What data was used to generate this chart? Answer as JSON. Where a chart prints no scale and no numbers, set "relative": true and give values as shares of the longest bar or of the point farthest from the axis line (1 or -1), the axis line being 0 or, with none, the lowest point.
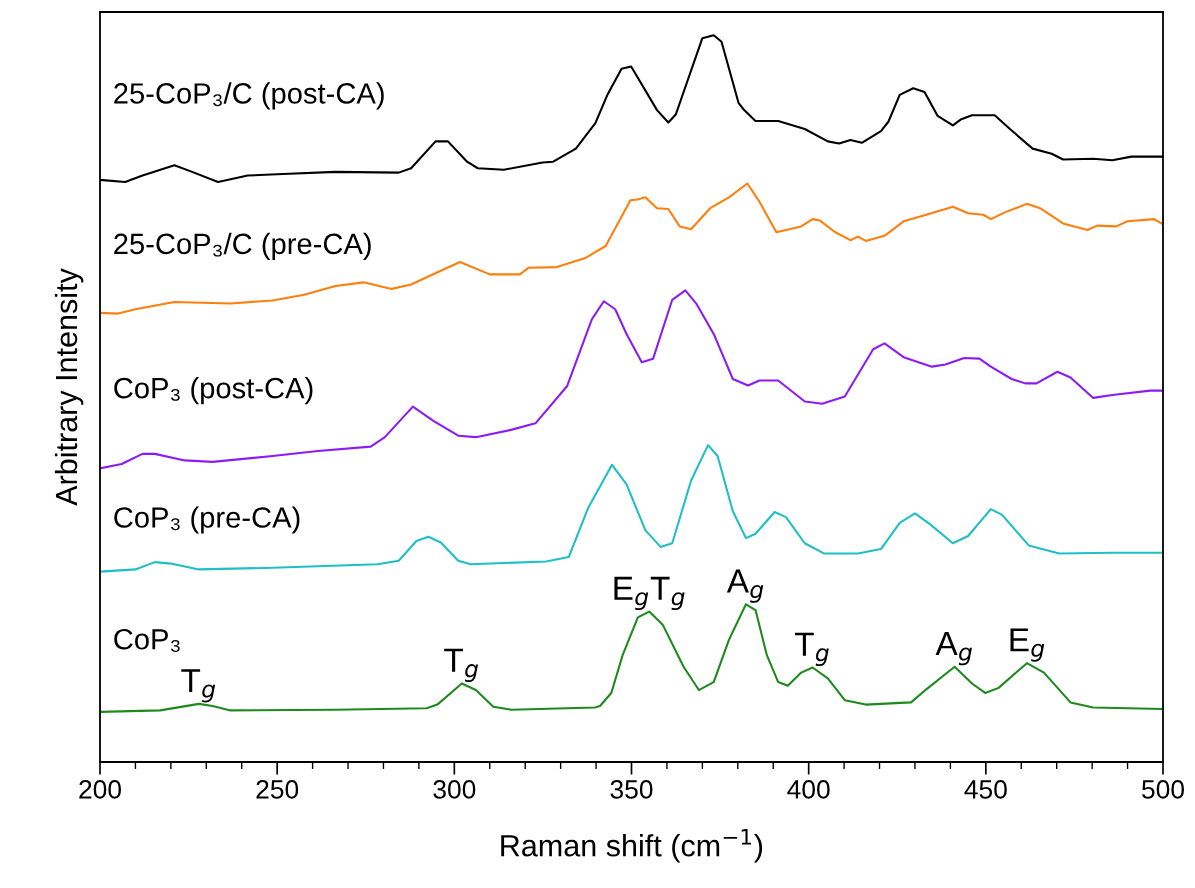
{
  "chart_data": {
    "type": "line",
    "relative": true,
    "xlabel": "Raman shift (cm$^{−1}$)",
    "ylabel": "Arbitrary Intensity",
    "xlim": [
      200,
      500
    ],
    "xticks": [
      200,
      {
        "value": 210,
        "label": null
      },
      {
        "value": 220,
        "label": null
      },
      {
        "value": 230,
        "label": null
      },
      {
        "value": 240,
        "label": null
      },
      250,
      {
        "value": 260,
        "label": null
      },
      {
        "value": 270,
        "label": null
      },
      {
        "value": 280,
        "label": null
      },
      {
        "value": 290,
        "label": null
      },
      300,
      {
        "value": 310,
        "label": null
      },
      {
        "value": 320,
        "label": null
      },
      {
        "value": 330,
        "label": null
      },
      {
        "value": 340,
        "label": null
      },
      350,
      {
        "value": 360,
        "label": null
      },
      {
        "value": 370,
        "label": null
      },
      {
        "value": 380,
        "label": null
      },
      {
        "value": 390,
        "label": null
      },
      400,
      {
        "value": 410,
        "label": null
      },
      {
        "value": 420,
        "label": null
      },
      {
        "value": 430,
        "label": null
      },
      {
        "value": 440,
        "label": null
      },
      450,
      {
        "value": 460,
        "label": null
      },
      {
        "value": 470,
        "label": null
      },
      {
        "value": 480,
        "label": null
      },
      {
        "value": 490,
        "label": null
      },
      500
    ],
    "tick_labels": "x",
    "grid": false,
    "legend": false,
    "marker": "none",
    "line_style": "solid",
    "series": [
      {
        "name": "25-CoP₃/C (post-CA)",
        "color": "#000000",
        "x": [
          200,
          207.1,
          212,
          221,
          226,
          233.3,
          241.7,
          251.6,
          266.5,
          284.3,
          287.8,
          294.7,
          298.2,
          303.6,
          306.6,
          314,
          324.9,
          327.9,
          334.3,
          339.8,
          343.2,
          347.2,
          349.9,
          357.2,
          360.4,
          362.5,
          370,
          373.2,
          375.4,
          380.2,
          381.8,
          385,
          391.4,
          398.9,
          405.4,
          408.6,
          411.8,
          415,
          420.4,
          422.5,
          425.7,
          429.5,
          432.7,
          436.4,
          440.7,
          442.9,
          446.1,
          452.5,
          456.8,
          463.2,
          468.6,
          471.8,
          480.3,
          485.7,
          491.1,
          500
        ],
        "values": [
          0.801,
          0.798,
          0.807,
          0.821,
          0.812,
          0.798,
          0.807,
          0.809,
          0.812,
          0.811,
          0.817,
          0.854,
          0.854,
          0.826,
          0.817,
          0.815,
          0.825,
          0.826,
          0.844,
          0.879,
          0.918,
          0.954,
          0.957,
          0.897,
          0.88,
          0.891,
          0.996,
          1.0,
          0.991,
          0.907,
          0.897,
          0.882,
          0.882,
          0.871,
          0.854,
          0.851,
          0.856,
          0.852,
          0.868,
          0.881,
          0.918,
          0.927,
          0.922,
          0.889,
          0.876,
          0.884,
          0.89,
          0.89,
          0.871,
          0.844,
          0.837,
          0.829,
          0.83,
          0.828,
          0.833,
          0.833
        ]
      },
      {
        "name": "25-CoP₃/C (pre-CA)",
        "color": "#ff7f0e",
        "x": [
          200,
          205.1,
          210,
          221,
          236.8,
          248.7,
          257.6,
          266.5,
          274.4,
          282.3,
          287.8,
          292.2,
          301.6,
          310,
          318.5,
          320.9,
          328.9,
          336.8,
          342.7,
          349.7,
          351.8,
          353.9,
          357.2,
          360.4,
          363.6,
          366.8,
          372.2,
          377.5,
          382.7,
          386.1,
          390.9,
          393.6,
          397.9,
          401.1,
          403.2,
          407.5,
          411.8,
          413.9,
          416.1,
          421.4,
          426.8,
          433.2,
          440.7,
          445,
          449.3,
          451.4,
          455.7,
          461.6,
          465.3,
          471.8,
          478.7,
          481.4,
          486.8,
          490,
          497.5,
          500
        ],
        "values": [
          0.618,
          0.617,
          0.623,
          0.633,
          0.631,
          0.635,
          0.643,
          0.655,
          0.66,
          0.651,
          0.657,
          0.667,
          0.688,
          0.671,
          0.671,
          0.68,
          0.681,
          0.693,
          0.71,
          0.773,
          0.774,
          0.777,
          0.762,
          0.761,
          0.737,
          0.733,
          0.762,
          0.777,
          0.796,
          0.771,
          0.729,
          0.732,
          0.737,
          0.747,
          0.745,
          0.729,
          0.718,
          0.723,
          0.717,
          0.724,
          0.744,
          0.753,
          0.764,
          0.755,
          0.753,
          0.747,
          0.757,
          0.768,
          0.762,
          0.741,
          0.732,
          0.738,
          0.737,
          0.744,
          0.747,
          0.74
        ]
      },
      {
        "name": "CoP₃ (post-CA)",
        "color": "#8b1cf5",
        "x": [
          200,
          206.1,
          212,
          215.5,
          223.9,
          231.8,
          248.7,
          261.5,
          276.4,
          280.4,
          288.3,
          294.2,
          301.1,
          306.1,
          316,
          322.9,
          331.8,
          338.8,
          342.2,
          345.4,
          348.6,
          352.9,
          356.1,
          361.5,
          365.2,
          368.4,
          373.2,
          378.6,
          382.9,
          386.1,
          391.4,
          398.9,
          403.8,
          410.2,
          418.2,
          421.4,
          426.8,
          434.8,
          438.6,
          443.9,
          448.2,
          451.4,
          457.3,
          461.1,
          464.3,
          470.2,
          473.9,
          480.3,
          485.7,
          496.4,
          500
        ],
        "values": [
          0.404,
          0.41,
          0.424,
          0.424,
          0.415,
          0.413,
          0.421,
          0.428,
          0.434,
          0.447,
          0.489,
          0.469,
          0.449,
          0.447,
          0.457,
          0.466,
          0.517,
          0.609,
          0.634,
          0.623,
          0.589,
          0.55,
          0.555,
          0.636,
          0.649,
          0.63,
          0.589,
          0.527,
          0.518,
          0.525,
          0.525,
          0.496,
          0.493,
          0.503,
          0.568,
          0.576,
          0.557,
          0.544,
          0.547,
          0.556,
          0.555,
          0.544,
          0.527,
          0.521,
          0.521,
          0.537,
          0.529,
          0.501,
          0.505,
          0.511,
          0.511
        ]
      },
      {
        "name": "CoP₃ (pre-CA)",
        "color": "#1fbfc4",
        "x": [
          200,
          210,
          215.5,
          220,
          227.9,
          246.7,
          278.4,
          284.3,
          289.3,
          292.7,
          296.2,
          301.1,
          304.6,
          325.9,
          332.3,
          337.8,
          344.5,
          348.6,
          353.9,
          358.2,
          361.5,
          366.8,
          371.6,
          374.3,
          378.6,
          382.3,
          385,
          390.4,
          393.6,
          398.9,
          404.3,
          413.9,
          420.4,
          425.7,
          430,
          434.3,
          440.7,
          445,
          451.4,
          454.6,
          462.1,
          470.7,
          485.7,
          500
        ],
        "values": [
          0.262,
          0.265,
          0.275,
          0.273,
          0.265,
          0.267,
          0.272,
          0.277,
          0.304,
          0.31,
          0.302,
          0.277,
          0.272,
          0.276,
          0.282,
          0.35,
          0.409,
          0.382,
          0.319,
          0.296,
          0.301,
          0.387,
          0.436,
          0.421,
          0.345,
          0.308,
          0.314,
          0.344,
          0.337,
          0.301,
          0.287,
          0.287,
          0.293,
          0.329,
          0.342,
          0.327,
          0.301,
          0.311,
          0.348,
          0.34,
          0.298,
          0.287,
          0.288,
          0.288
        ]
      },
      {
        "name": "CoP₃",
        "color": "#1e8a1e",
        "x": [
          200,
          217,
          227.9,
          231.8,
          236.8,
          266.5,
          292.2,
          295.2,
          302.1,
          306.1,
          311,
          316,
          339.7,
          341.1,
          344.3,
          347.5,
          351.8,
          355,
          358.8,
          364.7,
          369,
          373.2,
          377.5,
          382.3,
          385,
          388.2,
          391.4,
          394.1,
          397.9,
          401.1,
          405.4,
          410.2,
          416.1,
          428.9,
          433.2,
          441.2,
          446.1,
          449.8,
          453.6,
          461.6,
          466.4,
          473.9,
          480.3,
          500
        ],
        "values": [
          0.069,
          0.071,
          0.08,
          0.077,
          0.071,
          0.072,
          0.074,
          0.079,
          0.108,
          0.099,
          0.076,
          0.072,
          0.075,
          0.077,
          0.095,
          0.147,
          0.199,
          0.207,
          0.189,
          0.131,
          0.099,
          0.11,
          0.168,
          0.217,
          0.209,
          0.147,
          0.11,
          0.105,
          0.123,
          0.13,
          0.115,
          0.085,
          0.079,
          0.082,
          0.1,
          0.131,
          0.108,
          0.095,
          0.102,
          0.136,
          0.123,
          0.082,
          0.075,
          0.073
        ]
      }
    ],
    "annotations": [
      {
        "text": "T$_{g}$",
        "x": 227.9,
        "y": 0.08
      },
      {
        "text": "T$_{g}$",
        "x": 302.1,
        "y": 0.108
      },
      {
        "text": "E$_{g}$T$_{g}$",
        "x": 355,
        "y": 0.207
      },
      {
        "text": "A$_{g}$",
        "x": 382.3,
        "y": 0.217
      },
      {
        "text": "T$_{g}$",
        "x": 401.1,
        "y": 0.13
      },
      {
        "text": "A$_{g}$",
        "x": 441.2,
        "y": 0.131
      },
      {
        "text": "E$_{g}$",
        "x": 461.6,
        "y": 0.136
      }
    ]
  }
}
